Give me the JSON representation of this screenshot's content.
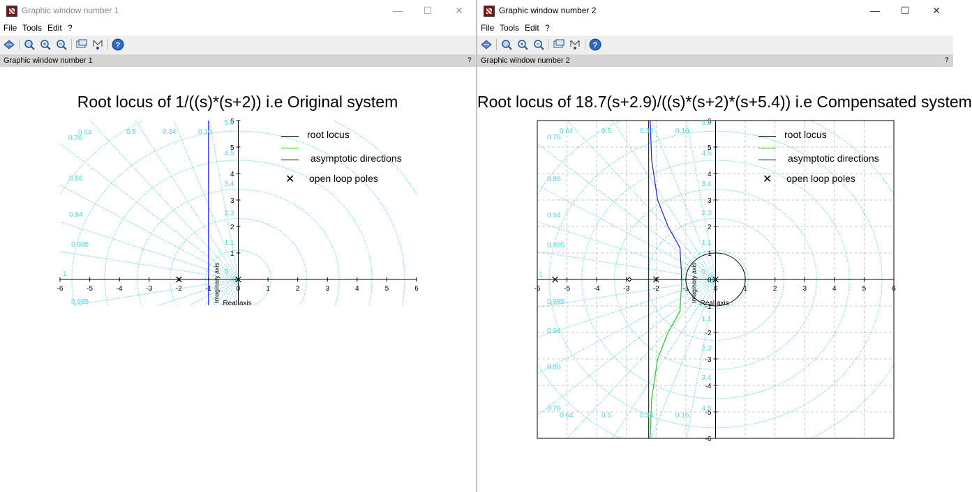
{
  "windows": [
    {
      "title": "Graphic window number 1",
      "menu": [
        "File",
        "Tools",
        "Edit",
        "?"
      ],
      "status_label": "Graphic window number 1",
      "status_help": "?",
      "controls": [
        "—",
        "☐",
        "✕"
      ]
    },
    {
      "title": "Graphic window number 2",
      "menu": [
        "File",
        "Tools",
        "Edit",
        "?"
      ],
      "status_label": "Graphic window number 2",
      "status_help": "?",
      "controls": [
        "—",
        "☐",
        "✕"
      ]
    }
  ],
  "colors": {
    "grid": "#4fd6ea",
    "root_locus_upper": "#1a1aff",
    "root_locus_lower": "#22cc22",
    "asymptote": "#000000",
    "active_border": "#e0a95a"
  },
  "chart_data": [
    {
      "type": "line",
      "title": "Root locus of 1/((s)*(s+2)) i.e Original system",
      "xlabel": "Real axis",
      "ylabel": "Imaginary axis",
      "xlim": [
        -6,
        6
      ],
      "ylim": [
        -1,
        6
      ],
      "x_ticks": [
        "-6",
        "-5",
        "-4",
        "-3",
        "-2",
        "-1",
        "0",
        "1",
        "2",
        "3",
        "4",
        "5",
        "6"
      ],
      "y_ticks": [
        "1",
        "2",
        "3",
        "4",
        "5",
        "6"
      ],
      "damping_labels": [
        "0.64",
        "0.5",
        "0.34",
        "0.16",
        "0.76",
        "0.86",
        "0.94",
        "0.985",
        "1",
        "0.985"
      ],
      "wn_labels": [
        "5.6",
        "4.5",
        "3.4",
        "2.3",
        "1.1",
        "0"
      ],
      "legend": [
        "root locus",
        "",
        "asymptotic directions",
        "open loop poles"
      ],
      "open_loop_poles": [
        [
          0,
          0
        ],
        [
          -2,
          0
        ]
      ],
      "asymptote_x": -1,
      "series": [
        {
          "points": [
            [
              -1,
              6
            ],
            [
              -1,
              -1
            ]
          ]
        }
      ]
    },
    {
      "type": "line",
      "title": "Root locus of 18.7(s+2.9)/((s)*(s+2)*(s+5.4)) i.e Compensated system",
      "xlabel": "Real axis",
      "ylabel": "Imaginary axis",
      "xlim": [
        -6,
        6
      ],
      "ylim": [
        -6,
        6
      ],
      "x_ticks": [
        "-6",
        "-5",
        "-4",
        "-3",
        "-2",
        "-1",
        "0",
        "1",
        "2",
        "3",
        "4",
        "5",
        "6"
      ],
      "y_ticks": [
        "-6",
        "-5",
        "-4",
        "-3",
        "-2",
        "-1",
        "0",
        "1",
        "2",
        "3",
        "4",
        "5",
        "6"
      ],
      "damping_labels": [
        "0.64",
        "0.5",
        "0.34",
        "0.16",
        "0.76",
        "0.86",
        "0.94",
        "0.985",
        "1",
        "0.985",
        "0.94",
        "0.86",
        "0.76",
        "0.64",
        "0.5",
        "0.34",
        "0.16"
      ],
      "wn_labels": [
        "5.6",
        "4.5",
        "3.4",
        "2.3",
        "1.1",
        "0",
        "1.1",
        "2.3",
        "3.4",
        "4.5"
      ],
      "legend": [
        "root locus",
        "",
        "asymptotic directions",
        "open loop poles"
      ],
      "open_loop_poles": [
        [
          0,
          0
        ],
        [
          -2,
          0
        ],
        [
          -5.4,
          0
        ]
      ],
      "open_loop_zeros": [
        [
          -2.9,
          0
        ]
      ],
      "asymptote_x": -2.25,
      "unit_circle_radius": 1,
      "series": [
        {
          "points": [
            [
              -2.2,
              6
            ],
            [
              -2.15,
              4.5
            ],
            [
              -1.95,
              3
            ],
            [
              -1.6,
              2
            ],
            [
              -1.2,
              1.2
            ],
            [
              -1.15,
              0.3
            ],
            [
              -1.15,
              0
            ]
          ]
        },
        {
          "points": [
            [
              -1.15,
              0
            ],
            [
              -1.15,
              -0.3
            ],
            [
              -1.2,
              -1.2
            ],
            [
              -1.6,
              -2
            ],
            [
              -1.95,
              -3
            ],
            [
              -2.15,
              -4.5
            ],
            [
              -2.2,
              -6
            ]
          ]
        }
      ]
    }
  ]
}
